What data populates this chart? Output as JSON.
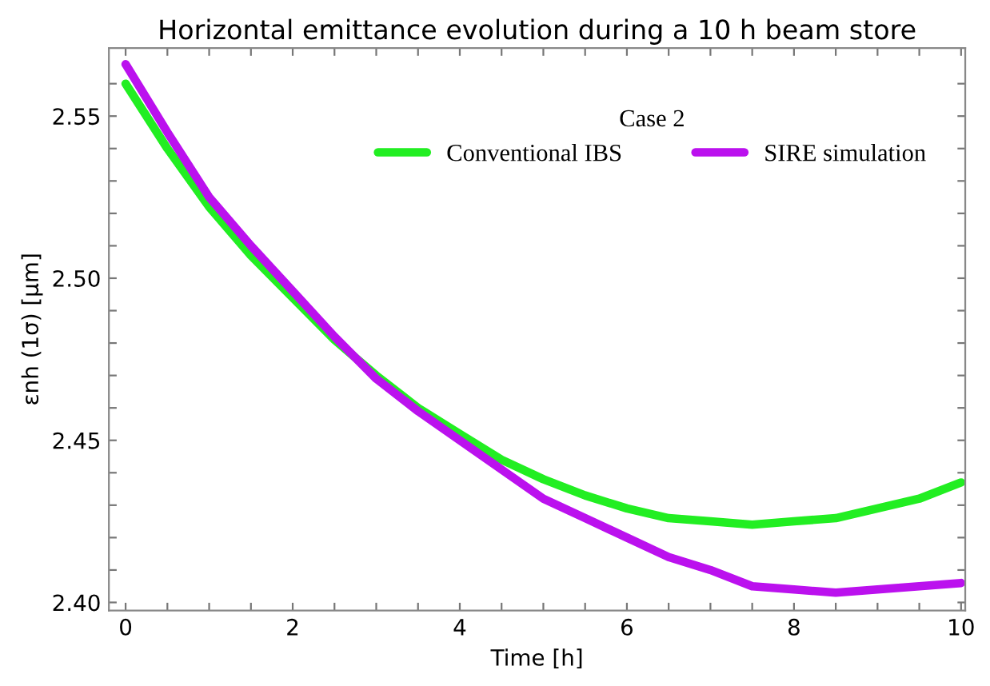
{
  "chart_data": {
    "type": "line",
    "title": "Horizontal emittance evolution during a 10 h beam store",
    "xlabel": "Time [h]",
    "ylabel": "εnh (1σ) [μm]",
    "legend_title": "Case 2",
    "legend": "top right",
    "grid": false,
    "marker": "none",
    "line_style": "solid",
    "xlim": [
      -0.2,
      10.05
    ],
    "ylim": [
      2.3975,
      2.571
    ],
    "xticks": [
      0,
      {
        "value": 0.5,
        "label": null
      },
      {
        "value": 1,
        "label": null
      },
      {
        "value": 1.5,
        "label": null
      },
      2,
      {
        "value": 2.5,
        "label": null
      },
      {
        "value": 3,
        "label": null
      },
      {
        "value": 3.5,
        "label": null
      },
      4,
      {
        "value": 4.5,
        "label": null
      },
      {
        "value": 5,
        "label": null
      },
      {
        "value": 5.5,
        "label": null
      },
      6,
      {
        "value": 6.5,
        "label": null
      },
      {
        "value": 7,
        "label": null
      },
      {
        "value": 7.5,
        "label": null
      },
      8,
      {
        "value": 8.5,
        "label": null
      },
      {
        "value": 9,
        "label": null
      },
      {
        "value": 9.5,
        "label": null
      },
      10
    ],
    "yticks": [
      {
        "value": 2.4,
        "label": "2.40"
      },
      {
        "value": 2.41,
        "label": null
      },
      {
        "value": 2.42,
        "label": null
      },
      {
        "value": 2.43,
        "label": null
      },
      {
        "value": 2.44,
        "label": null
      },
      2.45,
      {
        "value": 2.46,
        "label": null
      },
      {
        "value": 2.47,
        "label": null
      },
      {
        "value": 2.48,
        "label": null
      },
      {
        "value": 2.49,
        "label": null
      },
      {
        "value": 2.5,
        "label": "2.50"
      },
      {
        "value": 2.51,
        "label": null
      },
      {
        "value": 2.52,
        "label": null
      },
      {
        "value": 2.53,
        "label": null
      },
      {
        "value": 2.54,
        "label": null
      },
      2.55,
      {
        "value": 2.56,
        "label": null
      }
    ],
    "series": [
      {
        "name": "Conventional IBS",
        "color": "#22ee22",
        "x": [
          0,
          0.5,
          1,
          1.5,
          2,
          2.5,
          3,
          3.5,
          4,
          4.5,
          5,
          5.5,
          6,
          6.5,
          7,
          7.5,
          8,
          8.5,
          9,
          9.5,
          10
        ],
        "values": [
          2.56,
          2.54,
          2.522,
          2.507,
          2.494,
          2.481,
          2.47,
          2.46,
          2.452,
          2.444,
          2.438,
          2.433,
          2.429,
          2.426,
          2.425,
          2.424,
          2.425,
          2.426,
          2.429,
          2.432,
          2.437
        ]
      },
      {
        "name": "SIRE simulation",
        "color": "#bb11ee",
        "x": [
          0,
          0.5,
          1,
          1.5,
          2,
          2.5,
          3,
          3.5,
          4,
          4.5,
          5,
          5.5,
          6,
          6.5,
          7,
          7.5,
          8,
          8.5,
          9,
          9.5,
          10
        ],
        "values": [
          2.566,
          2.545,
          2.525,
          2.51,
          2.496,
          2.482,
          2.469,
          2.459,
          2.45,
          2.441,
          2.432,
          2.426,
          2.42,
          2.414,
          2.41,
          2.405,
          2.404,
          2.403,
          2.404,
          2.405,
          2.406
        ]
      }
    ]
  }
}
